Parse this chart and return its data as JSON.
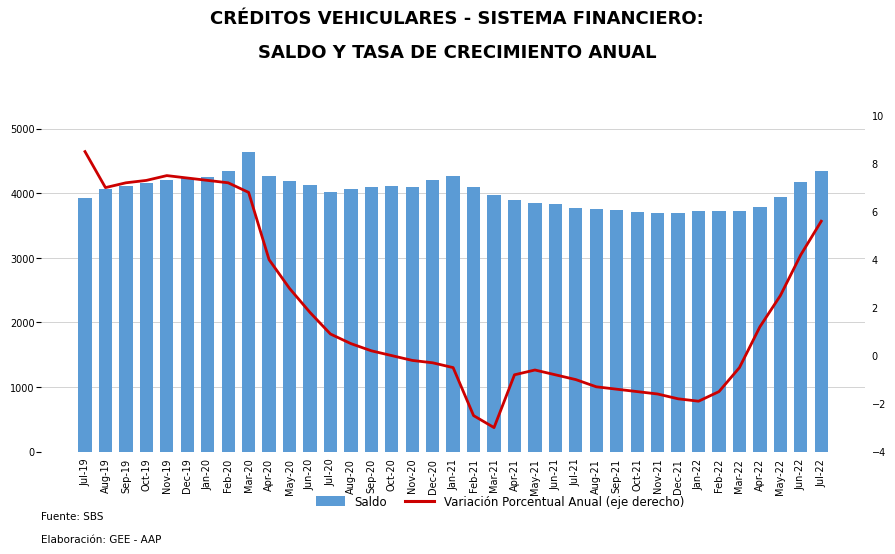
{
  "title_line1": "CRÉDITOS VEHICULARES - SISTEMA FINANCIERO:",
  "title_line2": "SALDO Y TASA DE CRECIMIENTO ANUAL",
  "source_line1": "Fuente: SBS",
  "source_line2": "Elaboración: GEE - AAP",
  "legend_bar": "Saldo",
  "legend_line": "Variación Porcentual Anual (eje derecho)",
  "bar_color": "#5b9bd5",
  "line_color": "#cc0000",
  "labels": [
    "Jul-19",
    "Aug-19",
    "Sep-19",
    "Oct-19",
    "Nov-19",
    "Dec-19",
    "Jan-20",
    "Feb-20",
    "Mar-20",
    "Apr-20",
    "May-20",
    "Jun-20",
    "Jul-20",
    "Aug-20",
    "Sep-20",
    "Oct-20",
    "Nov-20",
    "Dec-20",
    "Jan-21",
    "Feb-21",
    "Mar-21",
    "Apr-21",
    "May-21",
    "Jun-21",
    "Jul-21",
    "Aug-21",
    "Sep-21",
    "Oct-21",
    "Nov-21",
    "Dec-21",
    "Jan-22",
    "Feb-22",
    "Mar-22",
    "Apr-22",
    "May-22",
    "Jun-22",
    "Jul-22"
  ],
  "bar_values": [
    3920,
    4060,
    4110,
    4160,
    4210,
    4230,
    4250,
    4350,
    4640,
    4270,
    4190,
    4130,
    4010,
    4060,
    4090,
    4110,
    4100,
    4210,
    4260,
    4090,
    3970,
    3890,
    3840,
    3830,
    3770,
    3750,
    3740,
    3710,
    3700,
    3690,
    3730,
    3720,
    3730,
    3790,
    3940,
    4170,
    4350
  ],
  "line_values": [
    8.5,
    7.0,
    7.2,
    7.3,
    7.5,
    7.4,
    7.3,
    7.2,
    6.8,
    4.0,
    2.8,
    1.8,
    0.9,
    0.5,
    0.2,
    0.0,
    -0.2,
    -0.3,
    -0.5,
    -2.5,
    -3.0,
    -0.8,
    -0.6,
    -0.8,
    -1.0,
    -1.3,
    -1.4,
    -1.5,
    -1.6,
    -1.8,
    -1.9,
    -1.5,
    -0.5,
    1.2,
    2.5,
    4.2,
    5.6
  ],
  "ylim_bar": [
    0,
    5200
  ],
  "ylim_line": [
    -4,
    10
  ],
  "yticks_bar": [
    0,
    1000,
    2000,
    3000,
    4000,
    5000
  ],
  "yticks_line": [
    -4,
    -2,
    0,
    2,
    4,
    6,
    8,
    10
  ],
  "title_fontsize": 13,
  "tick_fontsize": 7,
  "legend_fontsize": 8.5
}
